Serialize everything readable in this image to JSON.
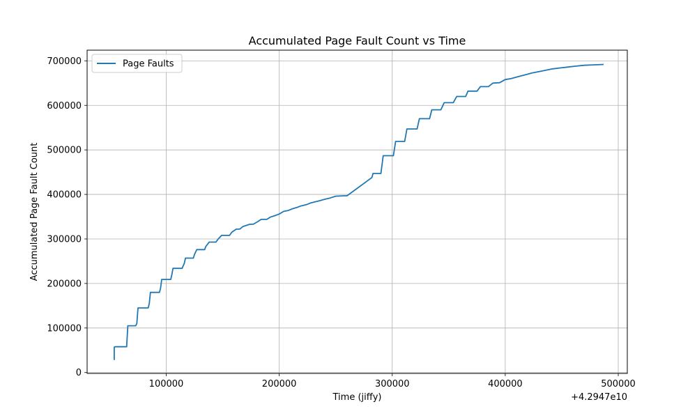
{
  "chart_data": {
    "type": "line",
    "title": "Accumulated Page Fault Count vs Time",
    "xlabel": "Time (jiffy)",
    "ylabel": "Accumulated Page Fault Count",
    "x_offset_label": "+4.2947e10",
    "xlim": [
      30000,
      508000
    ],
    "ylim": [
      -2000,
      724000
    ],
    "x_ticks": [
      100000,
      200000,
      300000,
      400000,
      500000
    ],
    "x_tick_labels": [
      "100000",
      "200000",
      "300000",
      "400000",
      "500000"
    ],
    "y_ticks": [
      0,
      100000,
      200000,
      300000,
      400000,
      500000,
      600000,
      700000
    ],
    "y_tick_labels": [
      "0",
      "100000",
      "200000",
      "300000",
      "400000",
      "500000",
      "600000",
      "700000"
    ],
    "grid": true,
    "legend_position": "top-left",
    "series": [
      {
        "name": "Page Faults",
        "color": "#1f77b4",
        "x": [
          54000,
          54000,
          55000,
          65000,
          66000,
          73000,
          74000,
          75000,
          84000,
          85000,
          86000,
          94000,
          95000,
          96000,
          104000,
          105000,
          106000,
          114000,
          116000,
          117000,
          124000,
          125000,
          127000,
          134000,
          135000,
          138000,
          144000,
          146000,
          149000,
          156000,
          158000,
          162000,
          165000,
          168000,
          174000,
          177000,
          181000,
          184000,
          189000,
          192000,
          197000,
          200000,
          204000,
          208000,
          212000,
          216000,
          219000,
          224000,
          228000,
          236000,
          240000,
          245000,
          250000,
          258000,
          260000,
          282000,
          283000,
          290000,
          292000,
          301000,
          303000,
          311000,
          313000,
          322000,
          324000,
          333000,
          335000,
          343000,
          346000,
          354000,
          357000,
          365000,
          367000,
          375000,
          378000,
          385000,
          389000,
          395000,
          400000,
          405000,
          412000,
          418000,
          424000,
          430000,
          436000,
          442000,
          448000,
          455000,
          462000,
          470000,
          478000,
          487000
        ],
        "y": [
          28000,
          57000,
          58000,
          58000,
          105000,
          105000,
          110000,
          145000,
          145000,
          155000,
          180000,
          180000,
          190000,
          209000,
          209000,
          220000,
          234000,
          234000,
          245000,
          257000,
          257000,
          265000,
          276000,
          276000,
          283000,
          293000,
          293000,
          300000,
          308000,
          308000,
          315000,
          322000,
          322000,
          328000,
          333000,
          333000,
          339000,
          344000,
          344000,
          349000,
          353000,
          356000,
          362000,
          364000,
          368000,
          371000,
          374000,
          377000,
          381000,
          386000,
          389000,
          392000,
          396000,
          397000,
          397000,
          438000,
          447000,
          447000,
          487000,
          487000,
          519000,
          519000,
          547000,
          547000,
          570000,
          570000,
          590000,
          590000,
          606000,
          606000,
          620000,
          620000,
          632000,
          632000,
          642000,
          642000,
          650000,
          651000,
          658000,
          660000,
          665000,
          669000,
          673000,
          676000,
          679000,
          682000,
          684000,
          686000,
          688000,
          690000,
          691000,
          692000
        ]
      }
    ]
  }
}
